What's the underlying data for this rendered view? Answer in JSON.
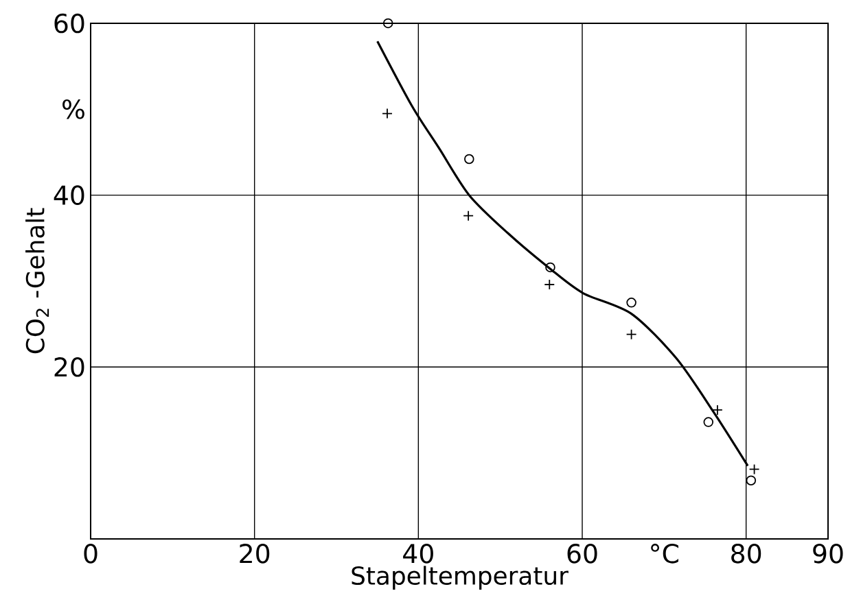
{
  "chart_data": {
    "type": "scatter",
    "xlabel": "Stapeltemperatur",
    "ylabel": "CO$_{2}$ -Gehalt",
    "xlim": [
      0,
      90
    ],
    "ylim": [
      0,
      60
    ],
    "xticks": [
      0,
      20,
      40,
      60,
      {
        "value": 70,
        "label": "°C"
      },
      80,
      90
    ],
    "yticks": [
      20,
      40,
      {
        "value": 50,
        "label": "%"
      },
      60
    ],
    "grid": true,
    "series": [
      {
        "marker": "circle",
        "color": "#000000",
        "x": [
          36.3,
          46.2,
          56.1,
          66,
          75.4,
          80.6
        ],
        "values": [
          60,
          44.2,
          31.6,
          27.5,
          13.6,
          6.8
        ]
      },
      {
        "marker": "cross",
        "color": "#000000",
        "x": [
          36.2,
          46.1,
          56,
          66,
          76.5,
          81
        ],
        "values": [
          49.5,
          37.6,
          29.6,
          23.8,
          15,
          8.1
        ]
      },
      {
        "type": "line",
        "marker": "none",
        "color": "#000000",
        "x": [
          35,
          39.2,
          42.5,
          46.2,
          50.9,
          56,
          60.1,
          66,
          71.5,
          76,
          80.2
        ],
        "values": [
          57.9,
          50.4,
          45.5,
          40,
          35.6,
          31.5,
          28.6,
          26.2,
          21,
          14.8,
          8.5
        ]
      }
    ]
  }
}
